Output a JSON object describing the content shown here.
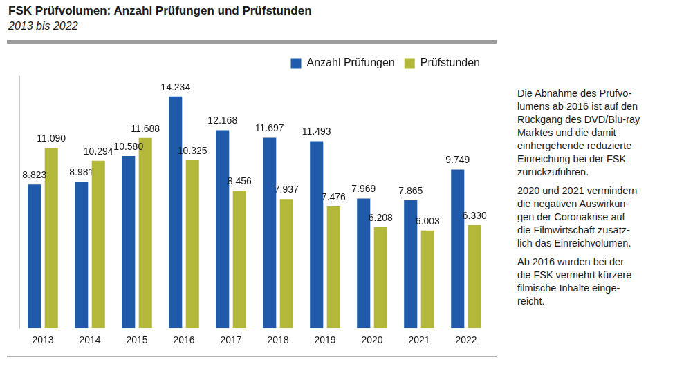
{
  "chart_data": {
    "type": "bar",
    "title": "FSK Prüfvolumen: Anzahl Prüfungen und Prüfstunden",
    "subtitle": "2013 bis 2022",
    "categories": [
      "2013",
      "2014",
      "2015",
      "2016",
      "2017",
      "2018",
      "2019",
      "2020",
      "2021",
      "2022"
    ],
    "series": [
      {
        "name": "Anzahl Prüfungen",
        "color": "#1f5aab",
        "values": [
          8823,
          8981,
          10580,
          14234,
          12168,
          11697,
          11493,
          7969,
          7865,
          9749
        ],
        "value_labels": [
          "8.823",
          "8.981",
          "10.580",
          "14.234",
          "12.168",
          "11.697",
          "11.493",
          "7.969",
          "7.865",
          "9.749"
        ]
      },
      {
        "name": "Prüfstunden",
        "color": "#b3b83a",
        "values": [
          11090,
          10294,
          11688,
          10325,
          8456,
          7937,
          7476,
          6208,
          6003,
          6330
        ],
        "value_labels": [
          "11.090",
          "10.294",
          "11.688",
          "10.325",
          "8.456",
          "7.937",
          "7.476",
          "6.208",
          "6.003",
          "6.330"
        ]
      }
    ],
    "ylim": [
      0,
      15500
    ],
    "tick_labels": "x",
    "grid": false,
    "legend": "upper right",
    "data_labels": true,
    "annotations": [
      [
        "Die Abnahme des Prüfvo-",
        "lumens ab 2016 ist auf den",
        "Rückgang des DVD/Blu-ray",
        "Marktes und die damit",
        "einhergehende reduzierte",
        "Einreichung bei der FSK",
        "zurückzuführen."
      ],
      [
        "2020 und 2021 vermindern",
        "die negativen Auswirkun-",
        "gen der Coronakrise auf",
        "die Filmwirtschaft zusätz-",
        "lich das Einreichvolumen."
      ],
      [
        "Ab 2016 wurden bei der",
        "die FSK vermehrt kürzere",
        "filmische Inhalte einge-",
        "reicht."
      ]
    ]
  }
}
